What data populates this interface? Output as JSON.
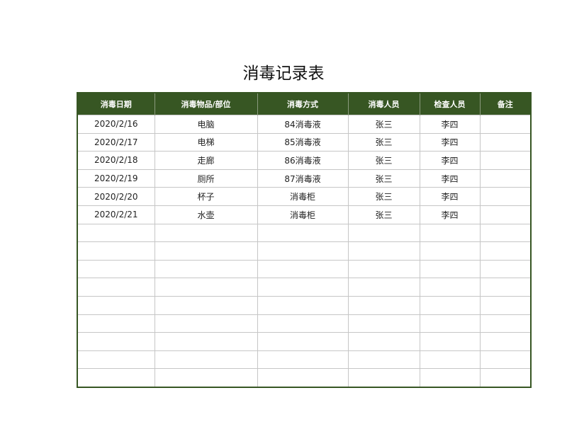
{
  "title": "消毒记录表",
  "colors": {
    "header_bg": "#375623",
    "header_text": "#ffffff"
  },
  "headers": [
    "消毒日期",
    "消毒物品/部位",
    "消毒方式",
    "消毒人员",
    "检查人员",
    "备注"
  ],
  "rows": [
    [
      "2020/2/16",
      "电脑",
      "84消毒液",
      "张三",
      "李四",
      ""
    ],
    [
      "2020/2/17",
      "电梯",
      "85消毒液",
      "张三",
      "李四",
      ""
    ],
    [
      "2020/2/18",
      "走廊",
      "86消毒液",
      "张三",
      "李四",
      ""
    ],
    [
      "2020/2/19",
      "厕所",
      "87消毒液",
      "张三",
      "李四",
      ""
    ],
    [
      "2020/2/20",
      "杯子",
      "消毒柜",
      "张三",
      "李四",
      ""
    ],
    [
      "2020/2/21",
      "水壶",
      "消毒柜",
      "张三",
      "李四",
      ""
    ],
    [
      "",
      "",
      "",
      "",
      "",
      ""
    ],
    [
      "",
      "",
      "",
      "",
      "",
      ""
    ],
    [
      "",
      "",
      "",
      "",
      "",
      ""
    ],
    [
      "",
      "",
      "",
      "",
      "",
      ""
    ],
    [
      "",
      "",
      "",
      "",
      "",
      ""
    ],
    [
      "",
      "",
      "",
      "",
      "",
      ""
    ],
    [
      "",
      "",
      "",
      "",
      "",
      ""
    ],
    [
      "",
      "",
      "",
      "",
      "",
      ""
    ],
    [
      "",
      "",
      "",
      "",
      "",
      ""
    ]
  ]
}
